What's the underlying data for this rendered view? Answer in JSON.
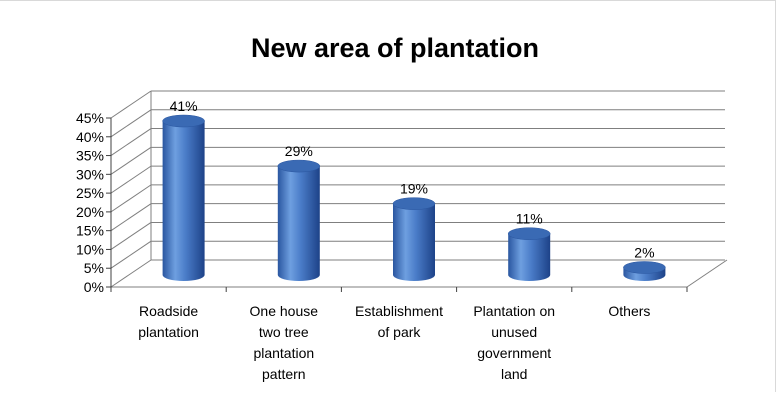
{
  "chart_data": {
    "type": "bar",
    "title": "New area of plantation",
    "xlabel": "",
    "ylabel": "",
    "categories": [
      [
        "Roadside",
        "plantation"
      ],
      [
        "One house",
        "two tree",
        "plantation",
        "pattern"
      ],
      [
        "Establishment",
        "of park"
      ],
      [
        "Plantation on",
        "unused",
        "government",
        "land"
      ],
      [
        "Others"
      ]
    ],
    "values": [
      41,
      29,
      19,
      11,
      2
    ],
    "data_labels": [
      "41%",
      "29%",
      "19%",
      "11%",
      "2%"
    ],
    "yticks": [
      0,
      5,
      10,
      15,
      20,
      25,
      30,
      35,
      40,
      45
    ],
    "ytick_labels": [
      "0%",
      "5%",
      "10%",
      "15%",
      "20%",
      "25%",
      "30%",
      "35%",
      "40%",
      "45%"
    ],
    "ylim": [
      0,
      45
    ],
    "grid": true,
    "legend": "none",
    "colors": {
      "bar_light": "#5b8fd6",
      "bar_mid": "#2f5fa8",
      "bar_dark": "#1c3f7a",
      "bar_top": "#3a6ab4",
      "grid": "#7f7f7f"
    }
  }
}
